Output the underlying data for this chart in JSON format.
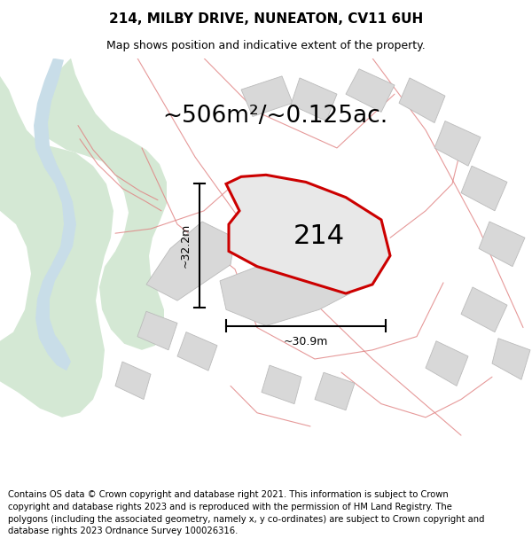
{
  "title": "214, MILBY DRIVE, NUNEATON, CV11 6UH",
  "subtitle": "Map shows position and indicative extent of the property.",
  "footer": "Contains OS data © Crown copyright and database right 2021. This information is subject to Crown copyright and database rights 2023 and is reproduced with the permission of HM Land Registry. The polygons (including the associated geometry, namely x, y co-ordinates) are subject to Crown copyright and database rights 2023 Ordnance Survey 100026316.",
  "area_text": "~506m²/~0.125ac.",
  "plot_number": "214",
  "dim_width": "~30.9m",
  "dim_height": "~32.2m",
  "map_bg": "#ffffff",
  "plot_fill": "#e8e8e8",
  "plot_stroke": "#cc0000",
  "building_fill": "#d8d8d8",
  "building_stroke": "#bbbbbb",
  "pink_line": "#e08080",
  "green_fill": "#d4e8d4",
  "blue_fill": "#c8dde8",
  "title_fontsize": 11,
  "subtitle_fontsize": 9,
  "footer_fontsize": 7.2,
  "area_fontsize": 19,
  "plot_number_fontsize": 22,
  "dim_fontsize": 9
}
